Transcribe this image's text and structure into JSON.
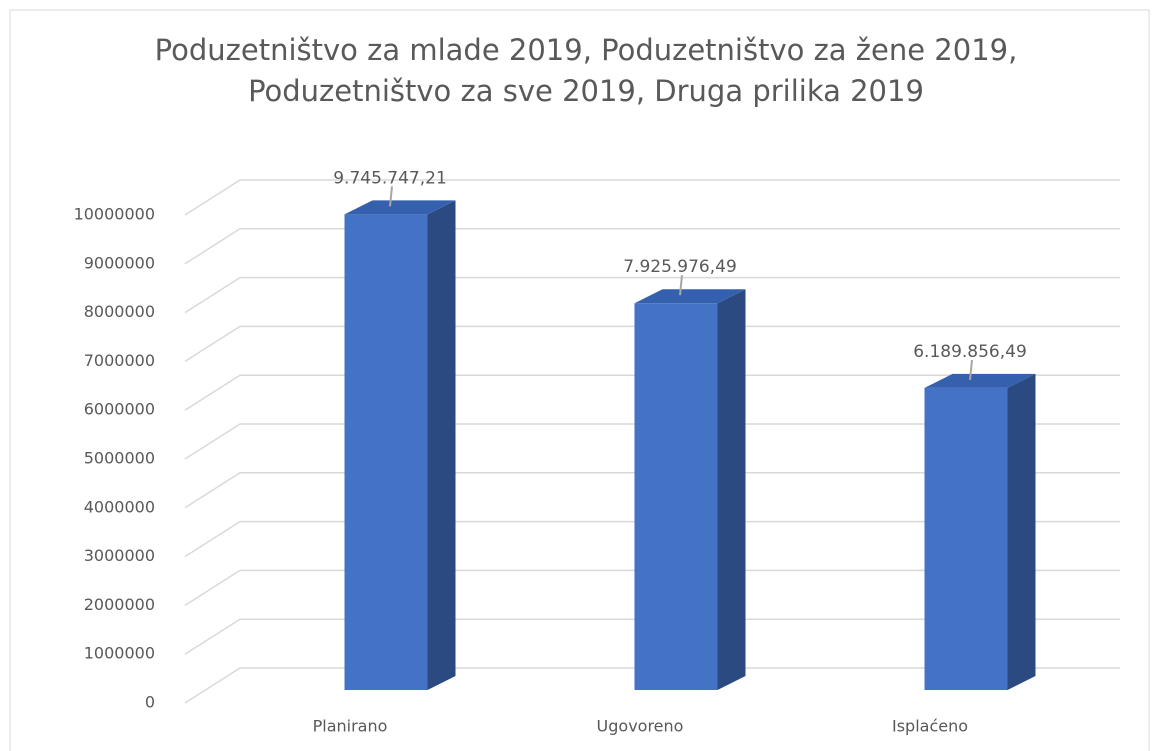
{
  "chart_data": {
    "type": "bar3d",
    "title": "Poduzetništvo za mlade 2019, Poduzetništvo za žene 2019, Poduzetništvo za sve 2019, Druga prilika 2019",
    "categories": [
      "Planirano",
      "Ugovoreno",
      "Isplaćeno"
    ],
    "values": [
      9745747.21,
      7925976.49,
      6189856.49
    ],
    "value_labels": [
      "9.745.747,21",
      "7.925.976,49",
      "6.189.856,49"
    ],
    "color": "#4472c4",
    "ylim": [
      0,
      10000000
    ],
    "yticks": [
      0,
      1000000,
      2000000,
      3000000,
      4000000,
      5000000,
      6000000,
      7000000,
      8000000,
      9000000,
      10000000
    ],
    "grid": true
  }
}
